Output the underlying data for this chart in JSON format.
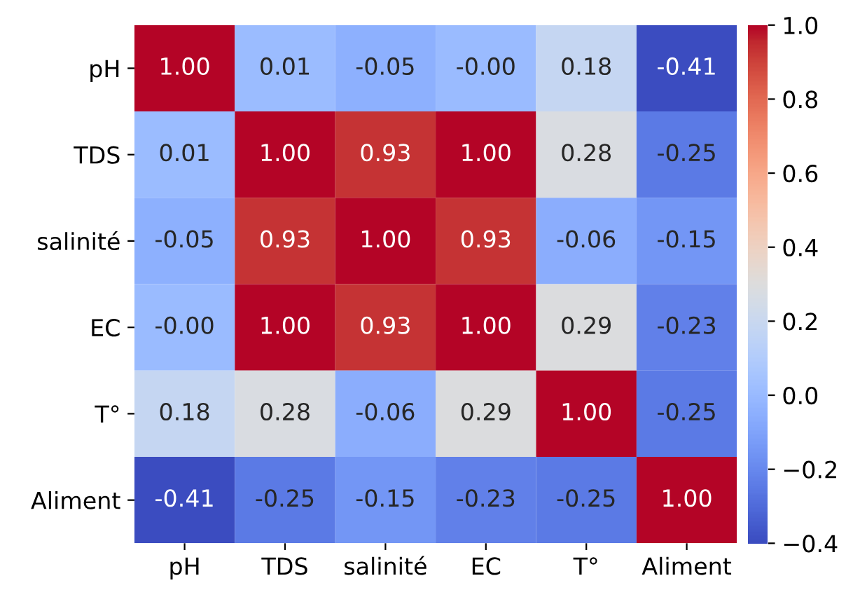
{
  "chart_data": {
    "type": "heatmap",
    "categories": [
      "pH",
      "TDS",
      "salinité",
      "EC",
      "T°",
      "Aliment"
    ],
    "y_categories": [
      "pH",
      "TDS",
      "salinité",
      "EC",
      "T°",
      "Aliment"
    ],
    "cells": [
      [
        1.0,
        0.01,
        -0.05,
        0.0,
        0.18,
        -0.41
      ],
      [
        0.01,
        1.0,
        0.93,
        1.0,
        0.28,
        -0.25
      ],
      [
        -0.05,
        0.93,
        1.0,
        0.93,
        -0.06,
        -0.15
      ],
      [
        0.0,
        1.0,
        0.93,
        1.0,
        0.29,
        -0.23
      ],
      [
        0.18,
        0.28,
        -0.06,
        0.29,
        1.0,
        -0.25
      ],
      [
        -0.41,
        -0.25,
        -0.15,
        -0.23,
        -0.25,
        1.0
      ]
    ],
    "cell_labels": [
      [
        "1.00",
        "0.01",
        "-0.05",
        "-0.00",
        "0.18",
        "-0.41"
      ],
      [
        "0.01",
        "1.00",
        "0.93",
        "1.00",
        "0.28",
        "-0.25"
      ],
      [
        "-0.05",
        "0.93",
        "1.00",
        "0.93",
        "-0.06",
        "-0.15"
      ],
      [
        "-0.00",
        "1.00",
        "0.93",
        "1.00",
        "0.29",
        "-0.23"
      ],
      [
        "0.18",
        "0.28",
        "-0.06",
        "0.29",
        "1.00",
        "-0.25"
      ],
      [
        "-0.41",
        "-0.25",
        "-0.15",
        "-0.23",
        "-0.25",
        "1.00"
      ]
    ],
    "clim": [
      -0.4,
      1.0
    ],
    "cticks": [
      {
        "value": -0.4,
        "label": "−0.4"
      },
      {
        "value": -0.2,
        "label": "−0.2"
      },
      {
        "value": 0.0,
        "label": "0.0"
      },
      {
        "value": 0.2,
        "label": "0.2"
      },
      {
        "value": 0.4,
        "label": "0.4"
      },
      {
        "value": 0.6,
        "label": "0.6"
      },
      {
        "value": 0.8,
        "label": "0.8"
      },
      {
        "value": 1.0,
        "label": "1.0"
      }
    ]
  }
}
